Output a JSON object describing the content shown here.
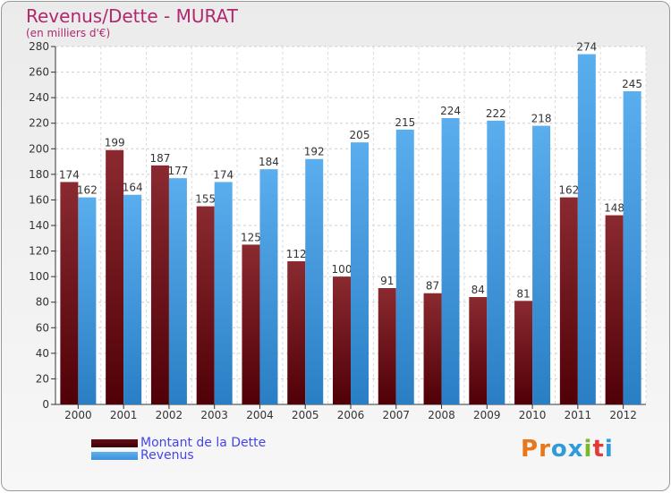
{
  "page": {
    "title": "Revenus/Dette - MURAT",
    "subtitle": "(en milliers d'€)"
  },
  "legend": {
    "items": [
      {
        "label": "Montant de la Dette",
        "color": "#6b0d15"
      },
      {
        "label": "Revenus",
        "color": "#3d8fd8"
      }
    ]
  },
  "logo": {
    "text": "Proxiti"
  },
  "chart_data": {
    "type": "bar",
    "categories": [
      "2000",
      "2001",
      "2002",
      "2003",
      "2004",
      "2005",
      "2006",
      "2007",
      "2008",
      "2009",
      "2010",
      "2011",
      "2012"
    ],
    "series": [
      {
        "name": "Montant de la Dette",
        "color": "#6b0d15",
        "values": [
          174,
          199,
          187,
          155,
          125,
          112,
          100,
          91,
          87,
          84,
          81,
          162,
          148
        ]
      },
      {
        "name": "Revenus",
        "color": "#3d8fd8",
        "values": [
          162,
          164,
          177,
          174,
          184,
          192,
          205,
          215,
          224,
          222,
          218,
          274,
          245
        ]
      }
    ],
    "yticks": [
      0,
      20,
      40,
      60,
      80,
      100,
      120,
      140,
      160,
      180,
      200,
      220,
      240,
      260,
      280
    ],
    "ylim": [
      0,
      280
    ],
    "grid": true,
    "legend_position": "bottom-left"
  }
}
